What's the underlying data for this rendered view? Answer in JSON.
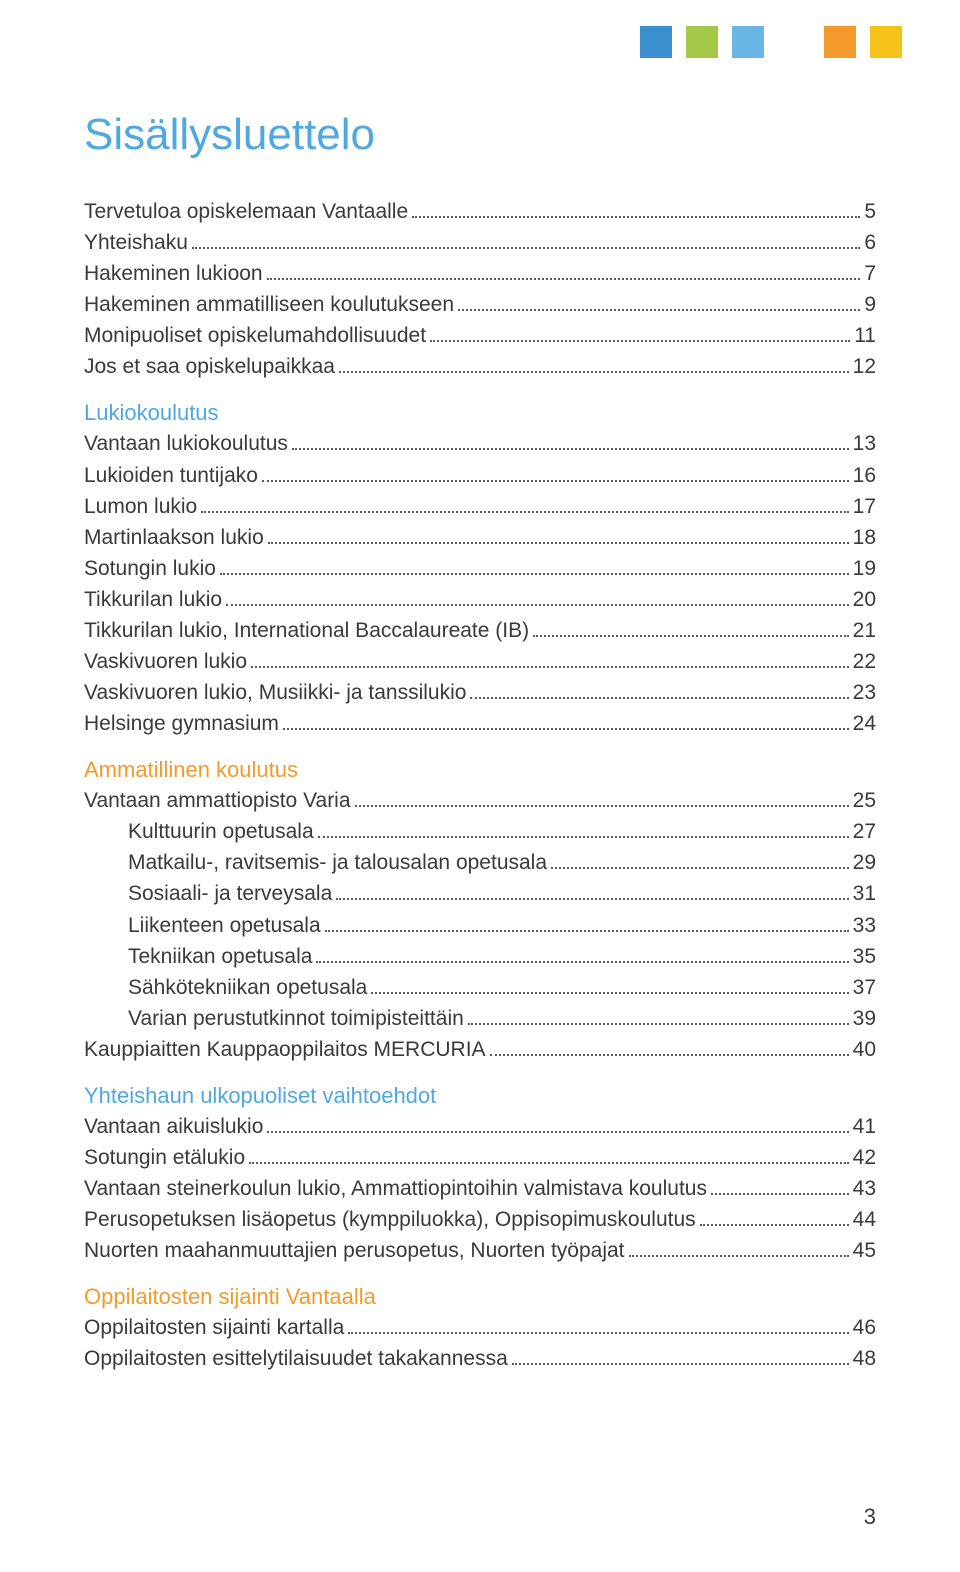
{
  "page_number": "3",
  "title_text": "Sisällysluettelo",
  "title_color": "#4fa8df",
  "squares": [
    "#3b8fcf",
    "#a4c94a",
    "#69b5e4",
    "#ffffff",
    "#f39a2c",
    "#f6c21b"
  ],
  "sections": [
    {
      "heading": null,
      "heading_color": null,
      "items": [
        {
          "label": "Tervetuloa opiskelemaan Vantaalle",
          "page": "5",
          "indent": 0
        },
        {
          "label": "Yhteishaku",
          "page": "6",
          "indent": 0
        },
        {
          "label": "Hakeminen lukioon",
          "page": "7",
          "indent": 0
        },
        {
          "label": "Hakeminen ammatilliseen koulutukseen",
          "page": "9",
          "indent": 0
        },
        {
          "label": "Monipuoliset opiskelumahdollisuudet",
          "page": "11",
          "indent": 0
        },
        {
          "label": "Jos et saa opiskelupaikkaa",
          "page": "12",
          "indent": 0
        }
      ]
    },
    {
      "heading": "Lukiokoulutus",
      "heading_color": "#4fa8df",
      "items": [
        {
          "label": "Vantaan lukiokoulutus",
          "page": "13",
          "indent": 0
        },
        {
          "label": "Lukioiden tuntijako",
          "page": "16",
          "indent": 0
        },
        {
          "label": "Lumon lukio",
          "page": "17",
          "indent": 0
        },
        {
          "label": "Martinlaakson lukio",
          "page": "18",
          "indent": 0
        },
        {
          "label": "Sotungin lukio",
          "page": "19",
          "indent": 0
        },
        {
          "label": "Tikkurilan lukio",
          "page": "20",
          "indent": 0
        },
        {
          "label": "Tikkurilan lukio, International Baccalaureate (IB)",
          "page": "21",
          "indent": 0
        },
        {
          "label": "Vaskivuoren lukio",
          "page": "22",
          "indent": 0
        },
        {
          "label": "Vaskivuoren lukio, Musiikki- ja tanssilukio",
          "page": "23",
          "indent": 0
        },
        {
          "label": "Helsinge gymnasium",
          "page": "24",
          "indent": 0
        }
      ]
    },
    {
      "heading": "Ammatillinen koulutus",
      "heading_color": "#f39a2c",
      "items": [
        {
          "label": "Vantaan ammattiopisto Varia",
          "page": "25",
          "indent": 0
        },
        {
          "label": "Kulttuurin opetusala",
          "page": "27",
          "indent": 1
        },
        {
          "label": "Matkailu-, ravitsemis- ja talousalan opetusala",
          "page": "29",
          "indent": 1
        },
        {
          "label": "Sosiaali- ja terveysala",
          "page": "31",
          "indent": 1
        },
        {
          "label": "Liikenteen opetusala",
          "page": "33",
          "indent": 1
        },
        {
          "label": "Tekniikan opetusala",
          "page": "35",
          "indent": 1
        },
        {
          "label": "Sähkötekniikan opetusala",
          "page": "37",
          "indent": 1
        },
        {
          "label": "Varian perustutkinnot toimipisteittäin",
          "page": "39",
          "indent": 1
        },
        {
          "label": "Kauppiaitten Kauppaoppilaitos MERCURIA",
          "page": "40",
          "indent": 0
        }
      ]
    },
    {
      "heading": "Yhteishaun ulkopuoliset vaihtoehdot",
      "heading_color": "#4fa8df",
      "items": [
        {
          "label": "Vantaan aikuislukio",
          "page": "41",
          "indent": 0
        },
        {
          "label": "Sotungin etälukio",
          "page": "42",
          "indent": 0
        },
        {
          "label": "Vantaan steinerkoulun lukio, Ammattiopintoihin valmistava koulutus",
          "page": "43",
          "indent": 0
        },
        {
          "label": "Perusopetuksen lisäopetus (kymppiluokka), Oppisopimuskoulutus",
          "page": "44",
          "indent": 0
        },
        {
          "label": "Nuorten maahanmuuttajien perusopetus, Nuorten työpajat",
          "page": "45",
          "indent": 0
        }
      ]
    },
    {
      "heading": "Oppilaitosten sijainti Vantaalla",
      "heading_color": "#f39a2c",
      "items": [
        {
          "label": "Oppilaitosten sijainti kartalla",
          "page": "46",
          "indent": 0
        },
        {
          "label": "Oppilaitosten esittelytilaisuudet takakannessa",
          "page": "48",
          "indent": 0
        }
      ]
    }
  ]
}
